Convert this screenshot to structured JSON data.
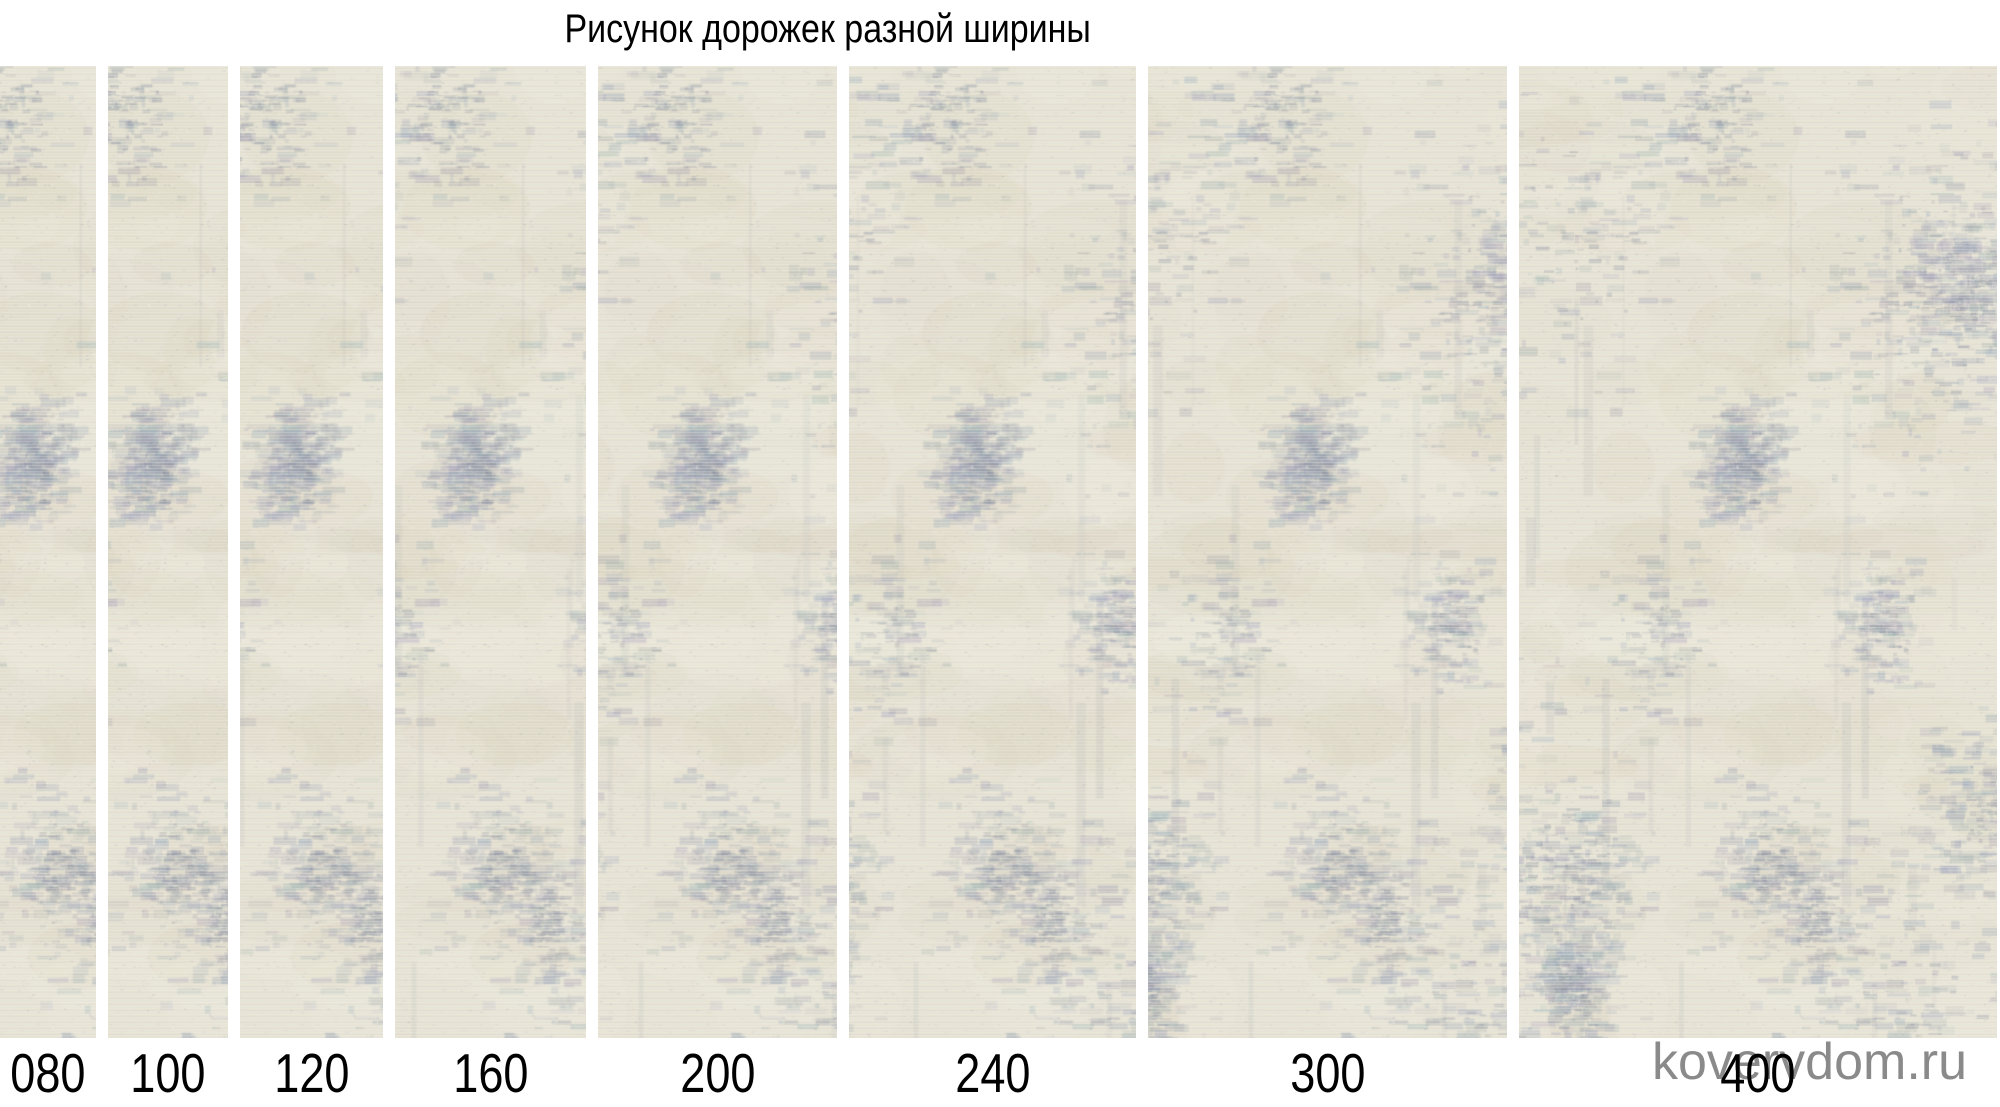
{
  "title": "Рисунок дорожек разной ширины",
  "watermark": "kovervdom.ru",
  "strips": [
    {
      "label": "080",
      "value": 80
    },
    {
      "label": "100",
      "value": 100
    },
    {
      "label": "120",
      "value": 120
    },
    {
      "label": "160",
      "value": 160
    },
    {
      "label": "200",
      "value": 200
    },
    {
      "label": "240",
      "value": 240
    },
    {
      "label": "300",
      "value": 300
    },
    {
      "label": "400",
      "value": 400
    }
  ],
  "colors": {
    "background": "#ffffff",
    "title_text": "#000000",
    "label_text": "#000000",
    "watermark_text": "#8a8a8a",
    "carpet_base": "#e6e3d5",
    "carpet_weave_light": "#f4f2e8",
    "carpet_patch_gray_blue": "#a9afbb",
    "carpet_patch_slate": "#808ca0",
    "carpet_patch_tan": "#d6ccb4"
  }
}
